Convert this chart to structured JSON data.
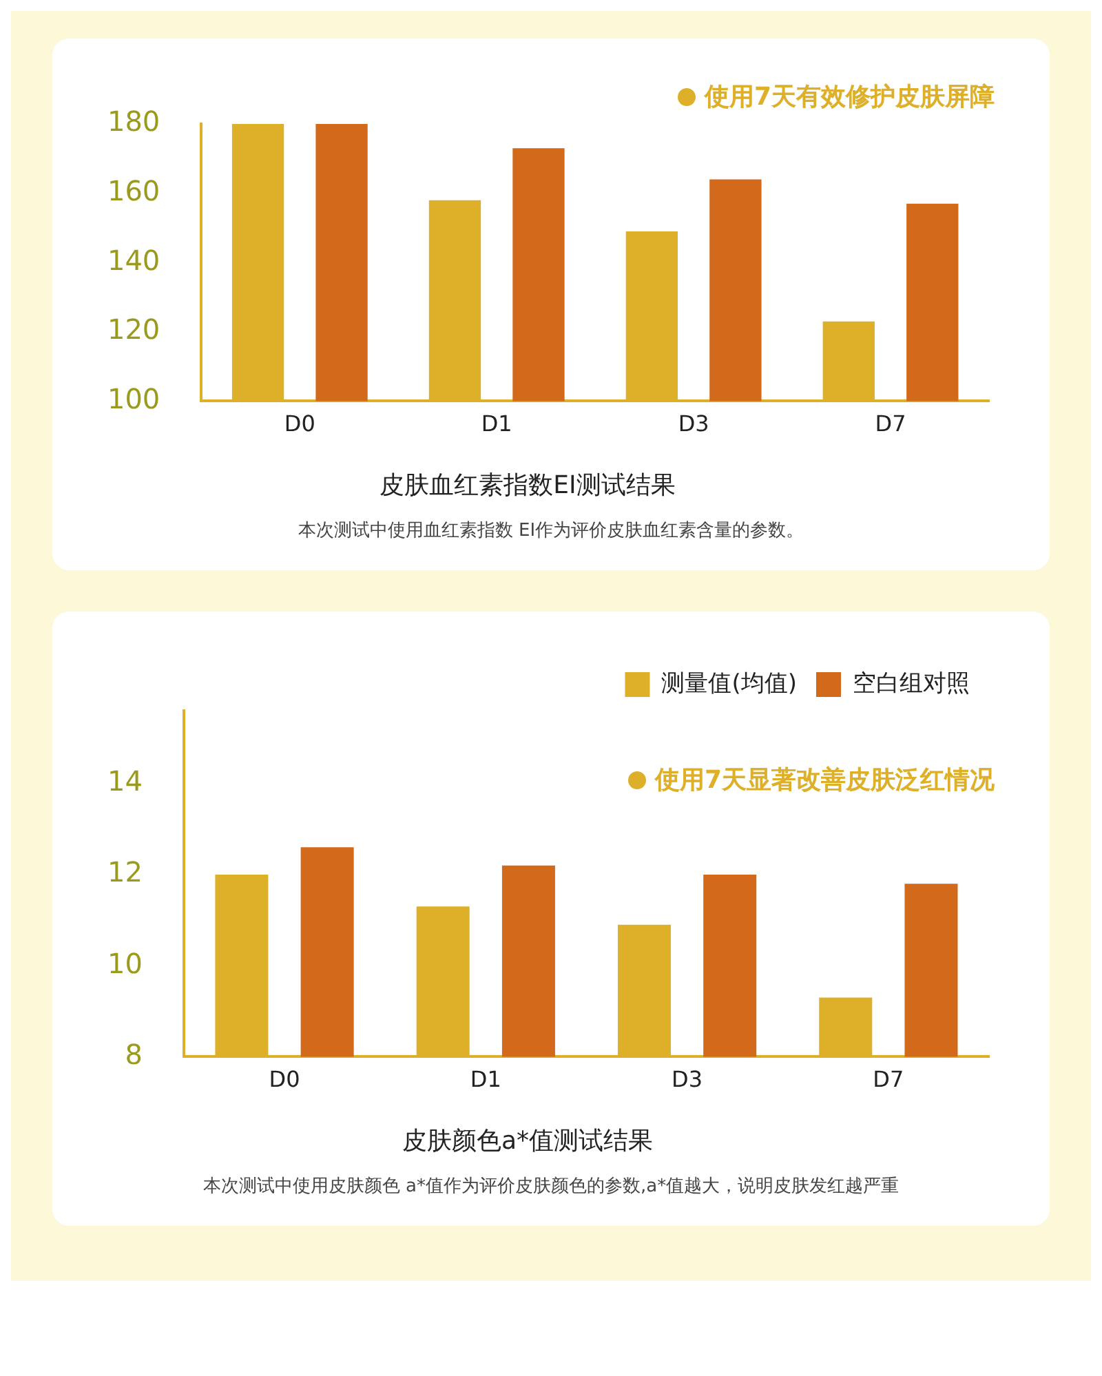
{
  "chart_data": [
    {
      "type": "bar",
      "title": "皮肤血红素指数EI测试结果",
      "categories": [
        "D0",
        "D1",
        "D3",
        "D7"
      ],
      "series": [
        {
          "color": "#deb02a",
          "values": [
            180,
            158,
            149,
            123
          ]
        },
        {
          "color": "#d3691a",
          "values": [
            180,
            173,
            164,
            157
          ]
        }
      ],
      "ylim": [
        100,
        180
      ],
      "yticks": [
        100,
        120,
        140,
        160,
        180
      ],
      "grid": false,
      "legend": false,
      "annotations": [
        "使用7天有效修护皮肤屏障",
        "本次测试中使用血红素指数 EI作为评价皮肤血红素含量的参数。"
      ]
    },
    {
      "type": "bar",
      "title": "皮肤颜色a*值测试结果",
      "categories": [
        "D0",
        "D1",
        "D3",
        "D7"
      ],
      "series": [
        {
          "name": "测量值(均值)",
          "color": "#deb02a",
          "values": [
            12.0,
            11.3,
            10.9,
            9.3
          ]
        },
        {
          "name": "空白组对照",
          "color": "#d3691a",
          "values": [
            12.6,
            12.2,
            12.0,
            11.8
          ]
        }
      ],
      "ylim": [
        8,
        15.6
      ],
      "yticks": [
        8,
        10,
        12,
        14
      ],
      "grid": false,
      "legend": "top right",
      "annotations": [
        "使用7天显著改善皮肤泛红情况",
        "本次测试中使用皮肤颜色 a*值作为评价皮肤颜色的参数,a*值越大，说明皮肤发红越严重"
      ]
    }
  ]
}
